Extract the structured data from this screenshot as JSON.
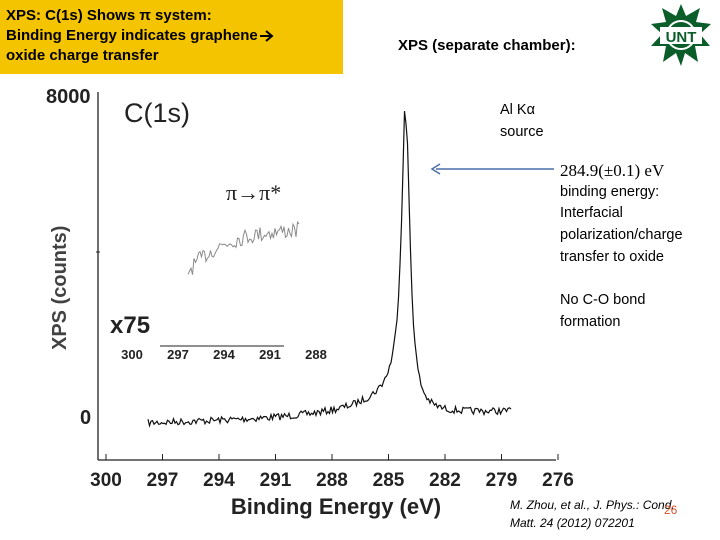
{
  "title": {
    "line1": "XPS:  C(1s) Shows π system:",
    "line2": "Binding Energy indicates graphene",
    "line3": "oxide charge transfer"
  },
  "chamber_label": "XPS (separate chamber):",
  "logo_text": "UNT",
  "spectrum": {
    "peak_label": "C(1s)",
    "pi_label": "π→π*",
    "inset_label": "x75",
    "y_ticks": [
      "8000",
      "0"
    ],
    "x_ticks": [
      "300",
      "297",
      "294",
      "291",
      "288",
      "285",
      "282",
      "279",
      "276"
    ],
    "x_label": "Binding Energy (eV)",
    "inset_x_ticks": [
      "300",
      "297",
      "294",
      "291",
      "288"
    ],
    "overlap_text": "XPS (counts)"
  },
  "notes": {
    "source_line1": "Al Kα",
    "source_line2": "source",
    "be_value": "284.9(±0.1) eV",
    "be_lines": [
      "binding energy:",
      "Interfacial",
      "polarization/charge",
      "transfer to oxide"
    ],
    "no_co_lines": [
      "No C-O bond",
      "formation"
    ]
  },
  "reference": {
    "line1": "M. Zhou, et al., J. Phys.: Cond.",
    "line2": "Matt. 24 (2012) 072201"
  },
  "page_number": "26",
  "colors": {
    "title_bg": "#f5c400",
    "arrow": "#4a6fa8",
    "page_number": "#d9542a"
  }
}
